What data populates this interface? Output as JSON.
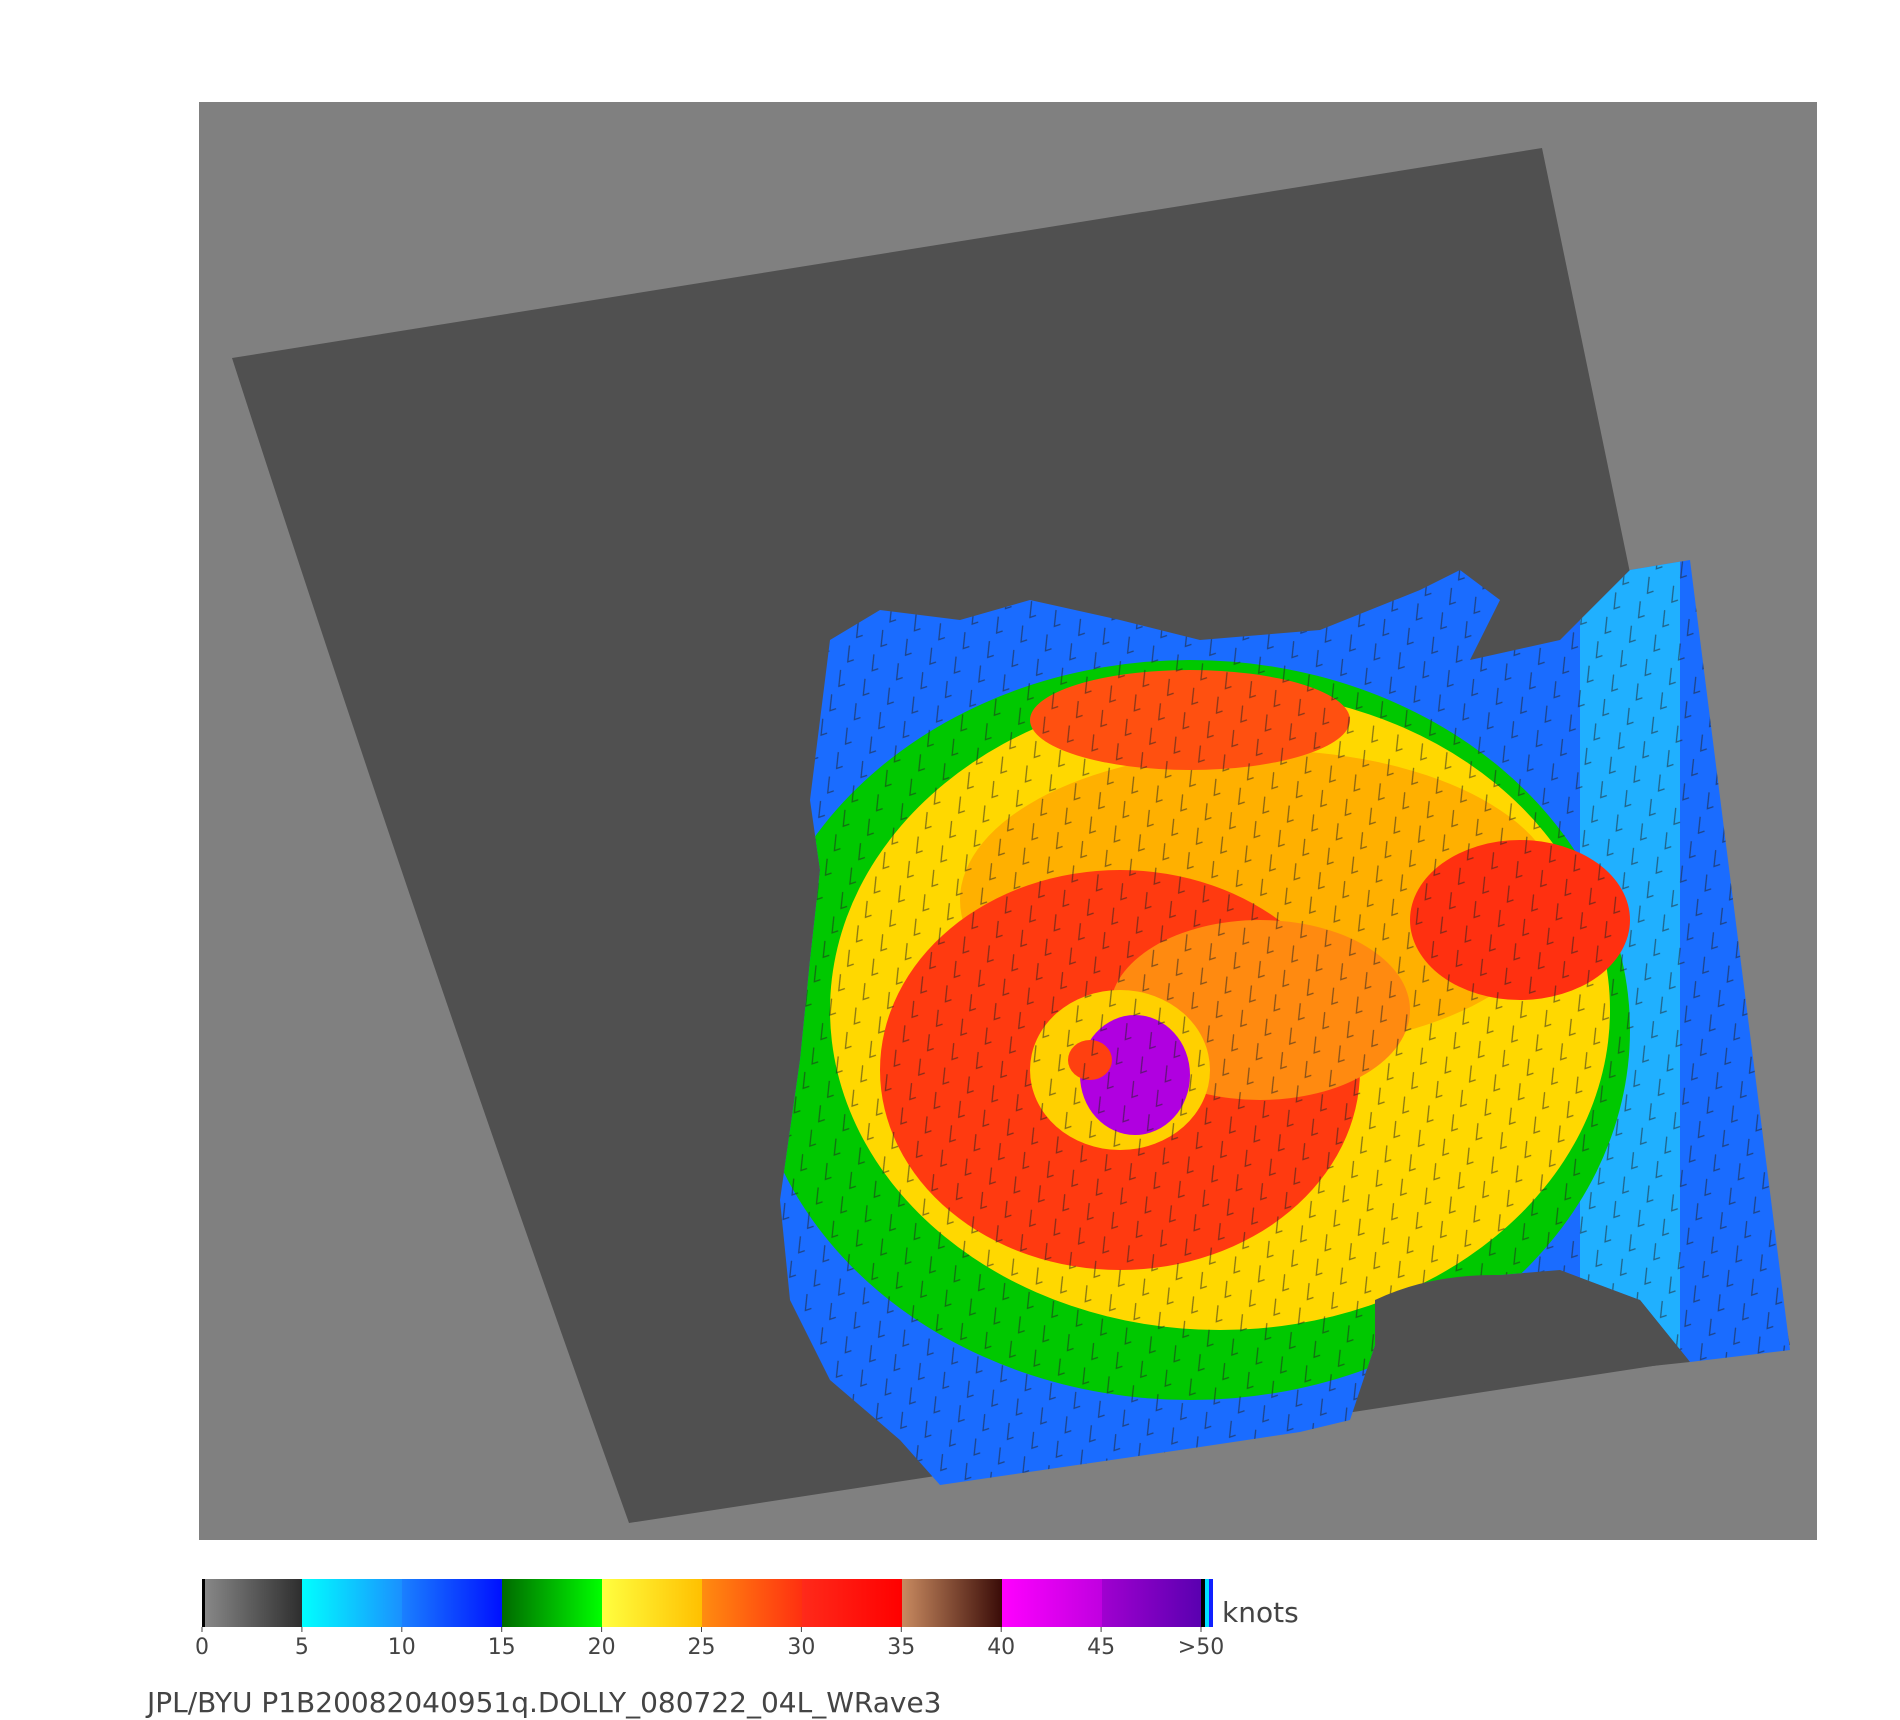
{
  "colorbar": {
    "unit": "knots",
    "lim": [
      0,
      50
    ],
    "ticks": [
      0,
      5,
      10,
      15,
      20,
      25,
      30,
      35,
      40,
      45,
      {
        "value": 50,
        "label": ">50"
      }
    ]
  },
  "footer": "JPL/BYU  P1B20082040951q.DOLLY_080722_04L_WRave3"
}
